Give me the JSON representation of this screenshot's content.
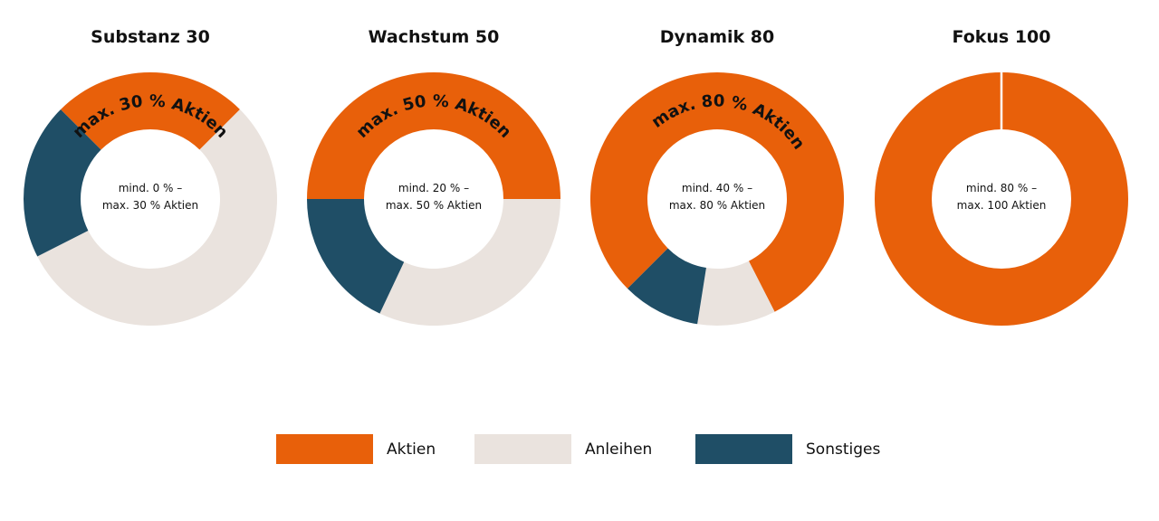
{
  "colors": {
    "aktien": "#E8600A",
    "anleihen": "#EAE3DE",
    "sonstiges": "#1F4E66"
  },
  "legend": [
    {
      "label": "Aktien",
      "color": "#E8600A"
    },
    {
      "label": "Anleihen",
      "color": "#EAE3DE"
    },
    {
      "label": "Sonstiges",
      "color": "#1F4E66"
    }
  ],
  "chart_data": [
    {
      "type": "pie",
      "title": "Substanz 30",
      "arc_label": "max. 30 % Aktien",
      "center_lines": [
        "mind. 0 % –",
        "max. 30 % Aktien"
      ],
      "slices": [
        {
          "category": "Aktien",
          "value": 25
        },
        {
          "category": "Anleihen",
          "value": 55
        },
        {
          "category": "Sonstiges",
          "value": 20
        }
      ]
    },
    {
      "type": "pie",
      "title": "Wachstum 50",
      "arc_label": "max. 50 % Aktien",
      "center_lines": [
        "mind. 20 % –",
        "max. 50 % Aktien"
      ],
      "slices": [
        {
          "category": "Aktien",
          "value": 50
        },
        {
          "category": "Anleihen",
          "value": 32
        },
        {
          "category": "Sonstiges",
          "value": 18
        }
      ]
    },
    {
      "type": "pie",
      "title": "Dynamik 80",
      "arc_label": "max. 80 % Aktien",
      "center_lines": [
        "mind. 40 % –",
        "max. 80 % Aktien"
      ],
      "slices": [
        {
          "category": "Aktien",
          "value": 80
        },
        {
          "category": "Anleihen",
          "value": 10
        },
        {
          "category": "Sonstiges",
          "value": 10
        }
      ]
    },
    {
      "type": "pie",
      "title": "Fokus 100",
      "arc_label": "",
      "center_lines": [
        "mind. 80 % –",
        "max. 100 Aktien"
      ],
      "slices": [
        {
          "category": "Aktien",
          "value": 100
        }
      ]
    }
  ]
}
